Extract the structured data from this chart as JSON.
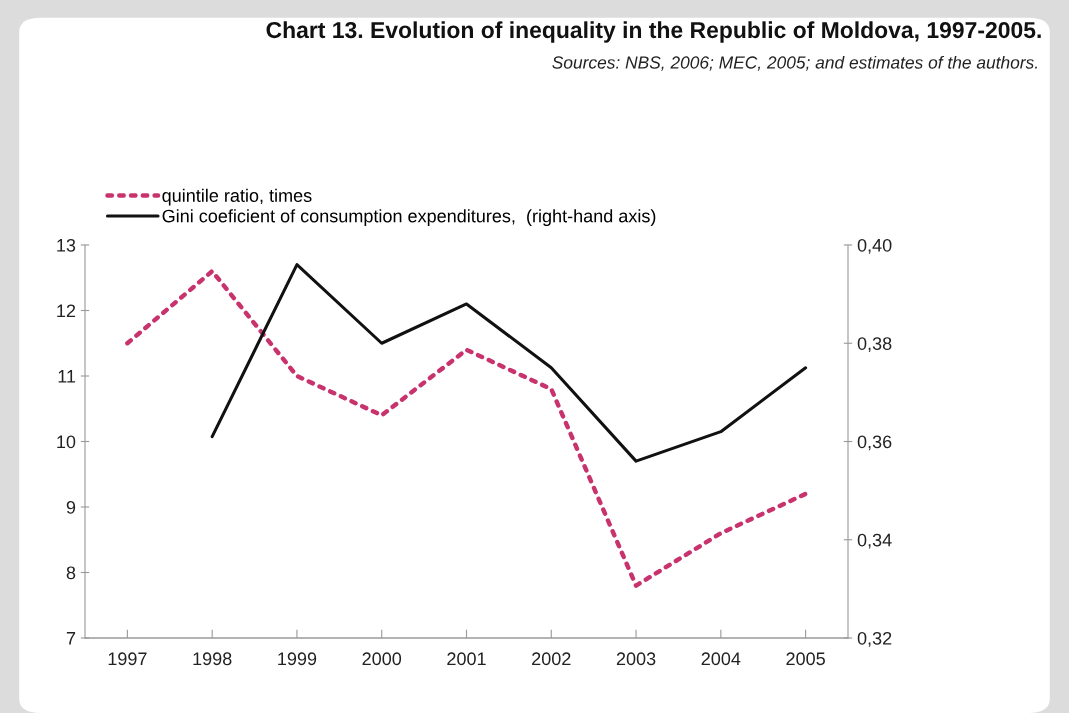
{
  "chart_data": {
    "type": "line",
    "title": "Chart 13. Evolution of inequality in the Republic of Moldova, 1997-2005.",
    "subtitle": "Sources: NBS, 2006; MEC, 2005; and estimates of the authors.",
    "categories": [
      "1997",
      "1998",
      "1999",
      "2000",
      "2001",
      "2002",
      "2003",
      "2004",
      "2005"
    ],
    "series": [
      {
        "name": "quintile ratio, times",
        "color": "#c8336e",
        "line_style": "dotted",
        "values": [
          11.5,
          12.6,
          11.0,
          10.4,
          11.4,
          10.8,
          7.8,
          8.6,
          9.2
        ]
      },
      {
        "name": "Gini coeficient of consumption expenditures,  (right-hand axis)",
        "color": "#111111",
        "line_style": "solid",
        "axis": "y2",
        "values": [
          null,
          0.361,
          0.396,
          0.38,
          0.388,
          0.375,
          0.356,
          0.362,
          0.375
        ]
      }
    ],
    "ylim": [
      7,
      13
    ],
    "yticks": [
      7,
      8,
      9,
      10,
      11,
      12,
      13
    ],
    "y2lim": [
      0.32,
      0.4
    ],
    "y2ticks": [
      {
        "value": 0.32,
        "label": "0,32"
      },
      {
        "value": 0.34,
        "label": "0,34"
      },
      {
        "value": 0.36,
        "label": "0,36"
      },
      {
        "value": 0.38,
        "label": "0,38"
      },
      {
        "value": 0.4,
        "label": "0,40"
      }
    ],
    "grid": false,
    "legend": "top left",
    "marker": "none"
  }
}
